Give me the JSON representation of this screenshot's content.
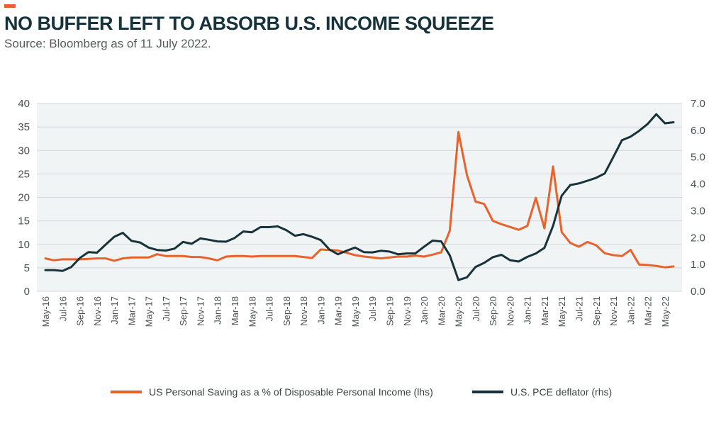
{
  "header": {
    "title": "NO BUFFER LEFT TO ABSORB U.S. INCOME SQUEEZE",
    "subtitle": "Source: Bloomberg as of 11 July 2022."
  },
  "colors": {
    "accent": "#e8622c",
    "saving": "#e8622c",
    "pce": "#16323a",
    "plot_bg": "#f1f4f5",
    "grid": "#d3d8da"
  },
  "chart_data": {
    "type": "line",
    "title": "NO BUFFER LEFT TO ABSORB U.S. INCOME SQUEEZE",
    "grid": true,
    "legend_position": "bottom",
    "y_left": {
      "lim": [
        0,
        40
      ],
      "ticks": [
        "0",
        "5",
        "10",
        "15",
        "20",
        "25",
        "30",
        "35",
        "40"
      ]
    },
    "y_right": {
      "lim": [
        0,
        7
      ],
      "ticks": [
        "0.0",
        "1.0",
        "2.0",
        "3.0",
        "4.0",
        "5.0",
        "6.0",
        "7.0"
      ]
    },
    "x_tick_labels": [
      "May-16",
      "Jul-16",
      "Sep-16",
      "Nov-16",
      "Jan-17",
      "Mar-17",
      "May-17",
      "Jul-17",
      "Sep-17",
      "Nov-17",
      "Jan-18",
      "Mar-18",
      "May-18",
      "Jul-18",
      "Sep-18",
      "Nov-18",
      "Jan-19",
      "Mar-19",
      "May-19",
      "Jul-19",
      "Sep-19",
      "Nov-19",
      "Jan-20",
      "Mar-20",
      "May-20",
      "Jul-20",
      "Sep-20",
      "Nov-20",
      "Jan-21",
      "Mar-21",
      "May-21",
      "Jul-21",
      "Sep-21",
      "Nov-21",
      "Jan-22",
      "Mar-22",
      "May-22"
    ],
    "series": [
      {
        "name": "US Personal Saving as a % of Disposable Personal Income (lhs)",
        "axis": "left",
        "values": [
          7.0,
          6.6,
          6.8,
          6.8,
          6.8,
          6.9,
          7.0,
          7.0,
          6.5,
          7.0,
          7.2,
          7.2,
          7.2,
          7.9,
          7.5,
          7.5,
          7.5,
          7.3,
          7.3,
          7.0,
          6.6,
          7.4,
          7.5,
          7.5,
          7.4,
          7.5,
          7.5,
          7.5,
          7.5,
          7.5,
          7.3,
          7.1,
          8.9,
          8.8,
          8.7,
          8.2,
          7.7,
          7.4,
          7.2,
          7.0,
          7.2,
          7.4,
          7.4,
          7.6,
          7.4,
          7.8,
          8.3,
          12.9,
          33.9,
          24.7,
          19.1,
          18.6,
          15.0,
          14.3,
          13.7,
          13.1,
          13.9,
          19.9,
          13.4,
          26.6,
          12.6,
          10.3,
          9.5,
          10.5,
          9.8,
          8.1,
          7.7,
          7.5,
          8.8,
          5.7,
          5.6,
          5.4,
          5.1,
          5.3
        ]
      },
      {
        "name": "U.S. PCE deflator (rhs)",
        "axis": "right",
        "values": [
          0.79,
          0.79,
          0.76,
          0.9,
          1.24,
          1.46,
          1.44,
          1.74,
          2.03,
          2.18,
          1.88,
          1.82,
          1.63,
          1.54,
          1.52,
          1.59,
          1.84,
          1.77,
          1.97,
          1.92,
          1.86,
          1.85,
          1.99,
          2.23,
          2.2,
          2.39,
          2.39,
          2.42,
          2.28,
          2.07,
          2.13,
          2.03,
          1.91,
          1.56,
          1.38,
          1.51,
          1.63,
          1.46,
          1.45,
          1.51,
          1.48,
          1.38,
          1.41,
          1.41,
          1.66,
          1.89,
          1.86,
          1.34,
          0.42,
          0.52,
          0.91,
          1.06,
          1.27,
          1.36,
          1.16,
          1.11,
          1.28,
          1.41,
          1.62,
          2.44,
          3.56,
          3.96,
          4.02,
          4.12,
          4.23,
          4.39,
          5.0,
          5.63,
          5.76,
          5.98,
          6.24,
          6.6,
          6.26,
          6.3
        ]
      }
    ]
  }
}
